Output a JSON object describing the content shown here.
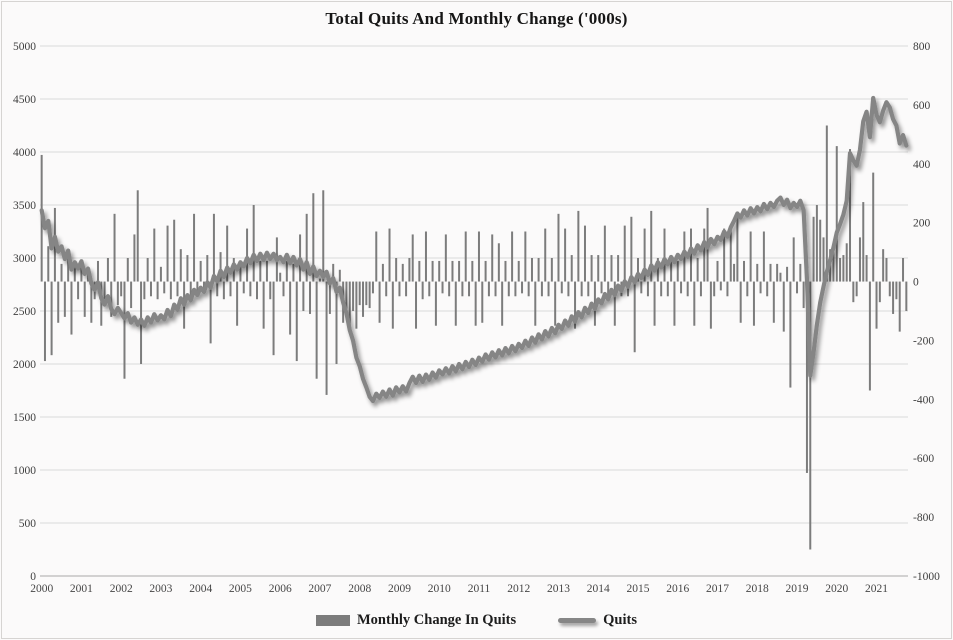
{
  "title": "Total Quits And Monthly Change ('000s)",
  "colors": {
    "bar": "#7c7c7c",
    "line": "#858585",
    "gridline": "#dadada",
    "axis_line": "#a8a8a8",
    "axis_text": "#3e3e3e"
  },
  "chart_data": {
    "type": "bar+line combo",
    "title": "Total Quits And Monthly Change ('000s)",
    "frequency": "monthly",
    "x_start": "2000-12",
    "x_end": "2022-09",
    "grid": "horizontal",
    "legend_position": "bottom",
    "x_tick_labels": [
      "2000",
      "2001",
      "2002",
      "2003",
      "2004",
      "2005",
      "2006",
      "2007",
      "2008",
      "2009",
      "2010",
      "2011",
      "2012",
      "2013",
      "2014",
      "2015",
      "2016",
      "2017",
      "2018",
      "2019",
      "2020",
      "2021"
    ],
    "left_axis": {
      "min": 0,
      "max": 5000,
      "step": 500,
      "ticks": [
        5000,
        4500,
        4000,
        3500,
        3000,
        2500,
        2000,
        1500,
        1000,
        500,
        0
      ]
    },
    "right_axis": {
      "min": -1000,
      "max": 800,
      "step": 200,
      "ticks": [
        800,
        600,
        400,
        200,
        0,
        -200,
        -400,
        -600,
        -800,
        -1000
      ]
    },
    "series": [
      {
        "name": "Monthly Change In Quits",
        "type": "bar",
        "axis": "right",
        "values": [
          430,
          -270,
          120,
          -250,
          250,
          -140,
          60,
          -120,
          80,
          -180,
          70,
          -60,
          70,
          -120,
          50,
          -140,
          -60,
          70,
          -150,
          -60,
          80,
          -120,
          230,
          -80,
          -50,
          -330,
          80,
          -90,
          160,
          310,
          -280,
          -60,
          80,
          -50,
          180,
          -60,
          50,
          -40,
          190,
          -60,
          210,
          -50,
          110,
          -160,
          90,
          -50,
          230,
          -50,
          70,
          -40,
          90,
          -210,
          230,
          -50,
          100,
          -60,
          190,
          -50,
          80,
          -150,
          70,
          -40,
          180,
          -50,
          260,
          -60,
          70,
          -160,
          70,
          -60,
          -250,
          150,
          30,
          -50,
          70,
          -180,
          60,
          -270,
          160,
          -100,
          230,
          -110,
          300,
          -330,
          10,
          310,
          -385,
          -110,
          60,
          -280,
          40,
          -140,
          -100,
          -160,
          -100,
          -160,
          -80,
          -120,
          -80,
          -90,
          -40,
          170,
          -140,
          60,
          -50,
          180,
          -160,
          80,
          -50,
          60,
          -50,
          80,
          160,
          -160,
          70,
          -60,
          170,
          -50,
          70,
          -150,
          70,
          -40,
          160,
          -50,
          70,
          -150,
          70,
          -50,
          170,
          -50,
          70,
          -150,
          170,
          -140,
          70,
          -50,
          160,
          -50,
          130,
          -150,
          70,
          -50,
          170,
          -50,
          70,
          -40,
          170,
          -50,
          80,
          -150,
          80,
          -50,
          180,
          -50,
          80,
          -150,
          230,
          -40,
          180,
          -50,
          90,
          -160,
          240,
          -50,
          190,
          -50,
          90,
          -150,
          90,
          -40,
          190,
          -50,
          90,
          -150,
          90,
          -50,
          190,
          -50,
          220,
          -240,
          80,
          -40,
          180,
          -50,
          240,
          -150,
          80,
          -50,
          180,
          -50,
          70,
          -150,
          70,
          -40,
          170,
          -50,
          180,
          -150,
          80,
          -50,
          180,
          250,
          -160,
          -50,
          70,
          -30,
          180,
          -50,
          190,
          60,
          230,
          -140,
          70,
          -50,
          170,
          -150,
          60,
          -40,
          170,
          -50,
          60,
          -140,
          60,
          30,
          -170,
          50,
          -360,
          150,
          -40,
          60,
          -90,
          -650,
          -910,
          220,
          260,
          210,
          150,
          530,
          110,
          120,
          460,
          80,
          90,
          130,
          450,
          -70,
          -50,
          150,
          270,
          90,
          -370,
          370,
          -160,
          -70,
          110,
          80,
          -50,
          -110,
          -60,
          -170,
          80,
          -100
        ]
      },
      {
        "name": "Quits",
        "type": "line",
        "axis": "left",
        "values": [
          3450,
          3280,
          3350,
          3090,
          3200,
          3060,
          3110,
          2990,
          3070,
          2890,
          2960,
          2900,
          2970,
          2850,
          2900,
          2760,
          2700,
          2770,
          2620,
          2560,
          2640,
          2520,
          2470,
          2530,
          2480,
          2430,
          2480,
          2390,
          2440,
          2370,
          2420,
          2360,
          2440,
          2390,
          2470,
          2410,
          2460,
          2420,
          2510,
          2450,
          2560,
          2510,
          2620,
          2560,
          2650,
          2600,
          2700,
          2650,
          2720,
          2680,
          2770,
          2720,
          2830,
          2780,
          2880,
          2820,
          2910,
          2860,
          2940,
          2890,
          2960,
          2920,
          3000,
          2950,
          3030,
          2970,
          3040,
          2980,
          3050,
          2990,
          3040,
          2980,
          3010,
          2960,
          3030,
          2950,
          3010,
          2930,
          2990,
          2890,
          2960,
          2850,
          2920,
          2830,
          2880,
          2820,
          2870,
          2760,
          2810,
          2680,
          2720,
          2580,
          2480,
          2320,
          2220,
          2060,
          1980,
          1860,
          1780,
          1690,
          1650,
          1720,
          1680,
          1740,
          1690,
          1760,
          1700,
          1780,
          1730,
          1790,
          1740,
          1820,
          1880,
          1820,
          1890,
          1830,
          1900,
          1850,
          1920,
          1870,
          1940,
          1900,
          1960,
          1910,
          1980,
          1930,
          2000,
          1950,
          2020,
          1970,
          2040,
          1990,
          2060,
          2020,
          2090,
          2040,
          2110,
          2060,
          2130,
          2080,
          2150,
          2100,
          2170,
          2120,
          2190,
          2150,
          2220,
          2170,
          2250,
          2200,
          2280,
          2230,
          2310,
          2260,
          2340,
          2290,
          2370,
          2330,
          2410,
          2360,
          2450,
          2400,
          2490,
          2440,
          2530,
          2480,
          2570,
          2520,
          2610,
          2570,
          2660,
          2610,
          2700,
          2650,
          2740,
          2690,
          2780,
          2730,
          2820,
          2770,
          2850,
          2810,
          2890,
          2840,
          2930,
          2880,
          2960,
          2910,
          2990,
          2940,
          3010,
          2960,
          3030,
          2990,
          3060,
          3010,
          3090,
          3040,
          3120,
          3070,
          3150,
          3100,
          3180,
          3130,
          3200,
          3170,
          3250,
          3200,
          3290,
          3350,
          3420,
          3380,
          3450,
          3400,
          3470,
          3420,
          3480,
          3440,
          3510,
          3460,
          3520,
          3480,
          3540,
          3570,
          3500,
          3550,
          3470,
          3520,
          3480,
          3540,
          3450,
          2800,
          1890,
          2110,
          2370,
          2580,
          2730,
          2870,
          2980,
          3100,
          3240,
          3320,
          3410,
          3540,
          3990,
          3920,
          3870,
          4020,
          4290,
          4380,
          4140,
          4510,
          4350,
          4280,
          4390,
          4470,
          4420,
          4310,
          4250,
          4080,
          4160,
          4060
        ]
      }
    ]
  }
}
